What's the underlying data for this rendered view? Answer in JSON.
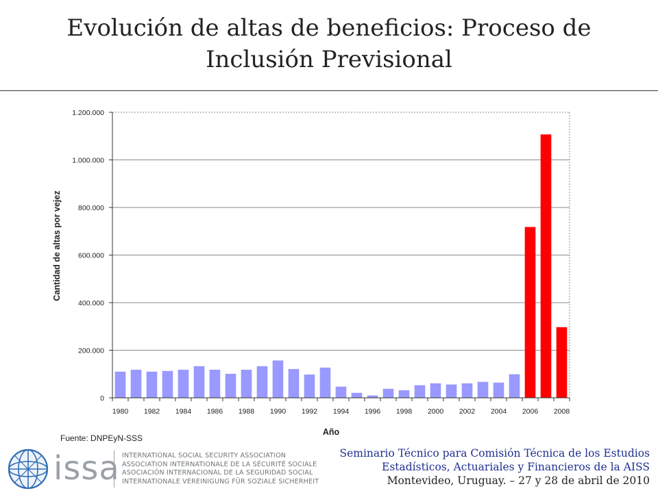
{
  "title": "Evolución de altas de beneficios: Proceso de Inclusión Previsional",
  "title_lines": [
    "Evolución de altas de beneficios: Proceso de",
    "Inclusión Previsional"
  ],
  "source": "Fuente: DNPEyN-SSS",
  "logo": {
    "wordmark": "issa",
    "names": [
      "INTERNATIONAL SOCIAL SECURITY ASSOCIATION",
      "ASSOCIATION INTERNATIONALE DE LA SÉCURITÉ SOCIALE",
      "ASOCIACIÓN INTERNACIONAL DE LA SEGURIDAD SOCIAL",
      "INTERNATIONALE VEREINIGUNG FÜR SOZIALE SICHERHEIT"
    ]
  },
  "seminar": {
    "line1": "Seminario Técnico para Comisión Técnica de los Estudios",
    "line2": "Estadísticos, Actuariales y Financieros de la AISS",
    "line3": "Montevideo, Uruguay. – 27 y 28 de abril de 2010"
  },
  "colors": {
    "bar_default": "#9999ff",
    "bar_highlight": "#ff0000",
    "seminar_text": "#1f2f8f"
  },
  "chart_data": {
    "type": "bar",
    "xlabel": "Año",
    "ylabel": "Cantidad de altas por vejez",
    "ylim": [
      0,
      1200000
    ],
    "yticks": [
      0,
      200000,
      400000,
      600000,
      800000,
      1000000,
      1200000
    ],
    "ytick_labels": [
      "0",
      "200.000",
      "400.000",
      "600.000",
      "800.000",
      "1.000.000",
      "1.200.000"
    ],
    "xtick_labels": [
      "1980",
      "1982",
      "1984",
      "1986",
      "1988",
      "1990",
      "1992",
      "1994",
      "1996",
      "1998",
      "2000",
      "2002",
      "2004",
      "2006",
      "2008"
    ],
    "grid": true,
    "categories": [
      "1980",
      "1981",
      "1982",
      "1983",
      "1984",
      "1985",
      "1986",
      "1987",
      "1988",
      "1989",
      "1990",
      "1991",
      "1992",
      "1993",
      "1994",
      "1995",
      "1996",
      "1997",
      "1998",
      "1999",
      "2000",
      "2001",
      "2002",
      "2003",
      "2004",
      "2005",
      "2006",
      "2007",
      "2008"
    ],
    "values": [
      110000,
      118000,
      110000,
      113000,
      118000,
      133000,
      118000,
      101000,
      118000,
      133000,
      157000,
      121000,
      98000,
      127000,
      47000,
      21000,
      10000,
      38000,
      32000,
      53000,
      61000,
      56000,
      61000,
      67000,
      64000,
      99000,
      718000,
      1107000,
      297000
    ],
    "highlighted_categories": [
      "2006",
      "2007",
      "2008"
    ]
  }
}
